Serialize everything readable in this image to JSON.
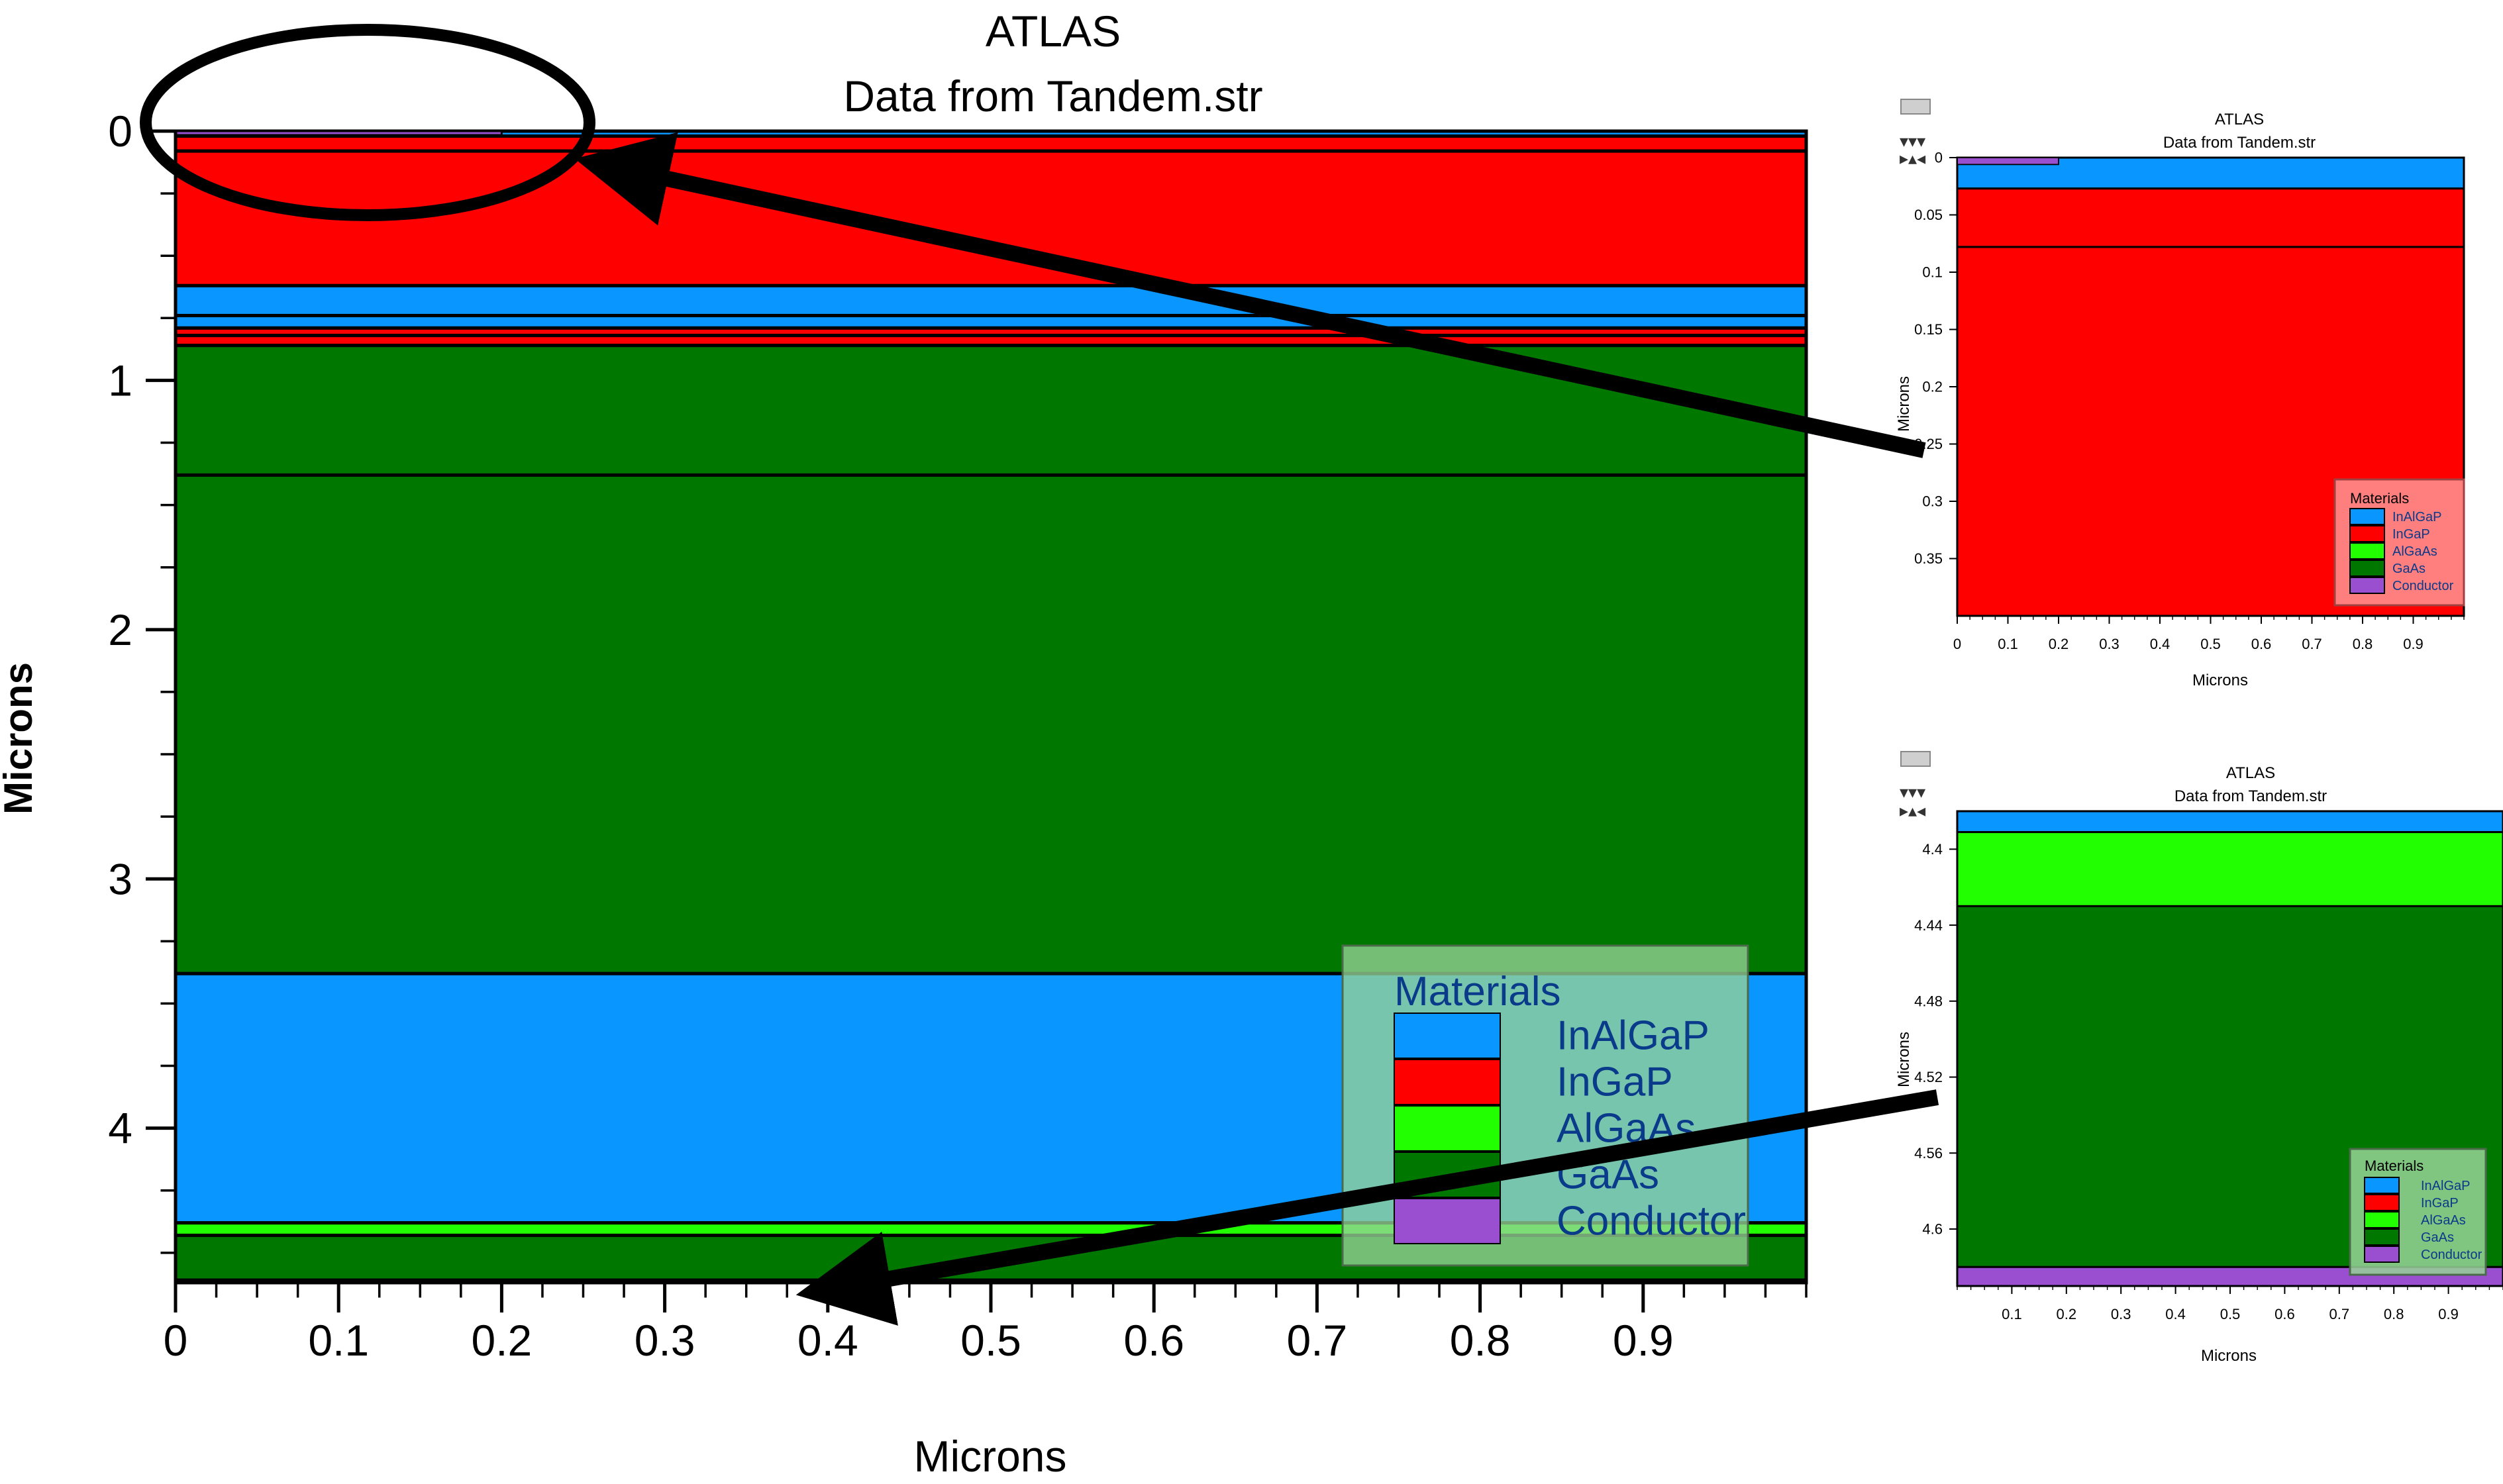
{
  "main_plot": {
    "title": "ATLAS",
    "subtitle": "Data from Tandem.str",
    "xlabel": "Microns",
    "ylabel": "Microns",
    "x_ticks": [
      "0",
      "0.1",
      "0.2",
      "0.3",
      "0.4",
      "0.5",
      "0.6",
      "0.7",
      "0.8",
      "0.9"
    ],
    "x_tick_values": [
      0,
      0.1,
      0.2,
      0.3,
      0.4,
      0.5,
      0.6,
      0.7,
      0.8,
      0.9
    ],
    "y_ticks": [
      "0",
      "1",
      "2",
      "3",
      "4"
    ],
    "y_tick_values": [
      0,
      1,
      2,
      3,
      4
    ],
    "xlim": [
      0,
      1.0
    ],
    "ylim": [
      0,
      4.62
    ],
    "layers": [
      {
        "material": "InAlGaP",
        "top": 0.0,
        "bottom": 0.02
      },
      {
        "material": "InGaP",
        "top": 0.02,
        "bottom": 0.08
      },
      {
        "material": "InGaP",
        "top": 0.08,
        "bottom": 0.62
      },
      {
        "material": "InAlGaP",
        "top": 0.62,
        "bottom": 0.74
      },
      {
        "material": "InAlGaP",
        "top": 0.74,
        "bottom": 0.79
      },
      {
        "material": "InGaP",
        "top": 0.79,
        "bottom": 0.82
      },
      {
        "material": "InGaP",
        "top": 0.82,
        "bottom": 0.86
      },
      {
        "material": "GaAs",
        "top": 0.86,
        "bottom": 1.38
      },
      {
        "material": "GaAs",
        "top": 1.38,
        "bottom": 3.38
      },
      {
        "material": "InAlGaP",
        "top": 3.38,
        "bottom": 4.38
      },
      {
        "material": "AlGaAs",
        "top": 4.38,
        "bottom": 4.43
      },
      {
        "material": "GaAs",
        "top": 4.43,
        "bottom": 4.61
      },
      {
        "material": "Conductor",
        "top": 4.61,
        "bottom": 4.62
      }
    ],
    "contact": {
      "material": "Conductor",
      "x0": 0.0,
      "x1": 0.2,
      "top": 0.0,
      "bottom": 0.01
    }
  },
  "legend": {
    "title": "Materials",
    "items": [
      {
        "label": "InAlGaP",
        "color": "#0a96ff"
      },
      {
        "label": "InGaP",
        "color": "#ff0000"
      },
      {
        "label": "AlGaAs",
        "color": "#22ff00"
      },
      {
        "label": "GaAs",
        "color": "#007800"
      },
      {
        "label": "Conductor",
        "color": "#9a4fd0"
      }
    ]
  },
  "zoom_top": {
    "title": "ATLAS",
    "subtitle": "Data from Tandem.str",
    "xlabel": "Microns",
    "ylabel": "Microns",
    "x_ticks": [
      "0",
      "0.1",
      "0.2",
      "0.3",
      "0.4",
      "0.5",
      "0.6",
      "0.7",
      "0.8",
      "0.9"
    ],
    "x_tick_values": [
      0,
      0.1,
      0.2,
      0.3,
      0.4,
      0.5,
      0.6,
      0.7,
      0.8,
      0.9
    ],
    "y_ticks": [
      "0",
      "0.05",
      "0.1",
      "0.15",
      "0.2",
      "0.25",
      "0.3",
      "0.35"
    ],
    "y_tick_values": [
      0,
      0.05,
      0.1,
      0.15,
      0.2,
      0.25,
      0.3,
      0.35
    ],
    "xlim": [
      0,
      1.0
    ],
    "ylim": [
      0,
      0.4
    ],
    "layers": [
      {
        "material": "InAlGaP",
        "top": 0.0,
        "bottom": 0.027
      },
      {
        "material": "InGaP",
        "top": 0.027,
        "bottom": 0.078
      },
      {
        "material": "InGaP",
        "top": 0.078,
        "bottom": 0.4
      }
    ],
    "contact": {
      "material": "Conductor",
      "x0": 0.0,
      "x1": 0.2,
      "top": 0.0,
      "bottom": 0.006
    }
  },
  "zoom_bottom": {
    "title": "ATLAS",
    "subtitle": "Data from Tandem.str",
    "xlabel": "Microns",
    "ylabel": "Microns",
    "x_ticks": [
      "0.1",
      "0.2",
      "0.3",
      "0.4",
      "0.5",
      "0.6",
      "0.7",
      "0.8",
      "0.9"
    ],
    "x_tick_values": [
      0.1,
      0.2,
      0.3,
      0.4,
      0.5,
      0.6,
      0.7,
      0.8,
      0.9
    ],
    "y_ticks": [
      "4.4",
      "4.44",
      "4.48",
      "4.52",
      "4.56",
      "4.6"
    ],
    "y_tick_values": [
      4.4,
      4.44,
      4.48,
      4.52,
      4.56,
      4.6
    ],
    "xlim": [
      0,
      1.0
    ],
    "ylim": [
      4.38,
      4.63
    ],
    "layers": [
      {
        "material": "InAlGaP",
        "top": 4.38,
        "bottom": 4.391
      },
      {
        "material": "AlGaAs",
        "top": 4.391,
        "bottom": 4.43
      },
      {
        "material": "GaAs",
        "top": 4.43,
        "bottom": 4.62
      },
      {
        "material": "Conductor",
        "top": 4.62,
        "bottom": 4.63
      }
    ]
  },
  "colors": {
    "InAlGaP": "#0a96ff",
    "InGaP": "#ff0000",
    "AlGaAs": "#22ff00",
    "GaAs": "#007800",
    "Conductor": "#9a4fd0",
    "legend_bg": "rgba(150,210,150,0.78)",
    "legend_bg_red": "rgba(255,140,140,0.9)"
  }
}
